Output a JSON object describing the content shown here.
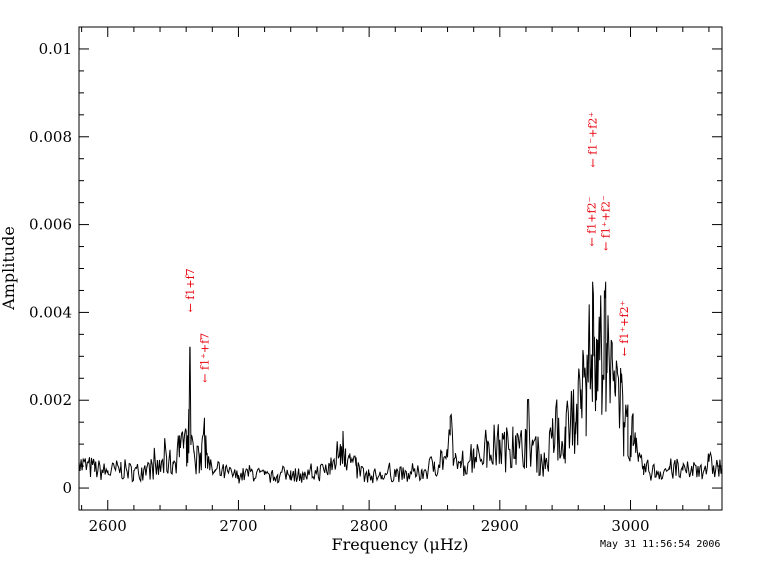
{
  "chart_data": {
    "type": "line",
    "title": "",
    "xlabel": "Frequency (μHz)",
    "ylabel": "Amplitude",
    "xlim": [
      2578,
      3070
    ],
    "ylim": [
      -0.0005,
      0.0105
    ],
    "xticks": [
      2600,
      2700,
      2800,
      2900,
      3000
    ],
    "xtick_labels": [
      "2600",
      "2700",
      "2800",
      "2900",
      "3000"
    ],
    "yticks": [
      0,
      0.002,
      0.004,
      0.006,
      0.008,
      0.01
    ],
    "ytick_labels": [
      "0",
      "0.002",
      "0.004",
      "0.006",
      "0.008",
      "0.01"
    ],
    "grid": false,
    "series": [
      {
        "color": "#000000",
        "x": [
          2578,
          2590,
          2600,
          2610,
          2620,
          2630,
          2640,
          2645,
          2650,
          2655,
          2658,
          2660,
          2661,
          2662,
          2663,
          2664,
          2666,
          2670,
          2672,
          2674,
          2675,
          2676,
          2678,
          2682,
          2690,
          2700,
          2710,
          2720,
          2730,
          2740,
          2750,
          2760,
          2770,
          2775,
          2778,
          2780,
          2782,
          2785,
          2790,
          2800,
          2810,
          2820,
          2830,
          2840,
          2850,
          2855,
          2860,
          2862,
          2863,
          2864,
          2866,
          2870,
          2880,
          2890,
          2900,
          2905,
          2910,
          2912,
          2915,
          2920,
          2925,
          2930,
          2935,
          2940,
          2945,
          2948,
          2950,
          2955,
          2958,
          2960,
          2962,
          2964,
          2966,
          2968,
          2970,
          2971,
          2972,
          2974,
          2975,
          2976,
          2978,
          2980,
          2981,
          2982,
          2984,
          2986,
          2988,
          2990,
          2992,
          2993,
          2995,
          2998,
          3000,
          3002,
          3004,
          3006,
          3010,
          3020,
          3030,
          3040,
          3050,
          3060,
          3070
        ],
        "y": [
          0.0006,
          0.0005,
          0.0004,
          0.0005,
          0.0004,
          0.0005,
          0.0005,
          0.0007,
          0.0006,
          0.0012,
          0.0009,
          0.0013,
          0.0012,
          0.0018,
          0.0032,
          0.0012,
          0.0008,
          0.0007,
          0.001,
          0.0016,
          0.0012,
          0.0008,
          0.0005,
          0.0004,
          0.0004,
          0.0003,
          0.0004,
          0.0003,
          0.0003,
          0.0004,
          0.0003,
          0.0004,
          0.0005,
          0.0008,
          0.001,
          0.0013,
          0.0009,
          0.0007,
          0.0005,
          0.0003,
          0.0003,
          0.0004,
          0.0003,
          0.0004,
          0.0006,
          0.0008,
          0.0007,
          0.0012,
          0.0016,
          0.001,
          0.0007,
          0.0006,
          0.0009,
          0.001,
          0.0011,
          0.001,
          0.0014,
          0.0012,
          0.0009,
          0.0013,
          0.0011,
          0.0008,
          0.0006,
          0.0012,
          0.0016,
          0.001,
          0.0014,
          0.0021,
          0.0015,
          0.0024,
          0.0018,
          0.003,
          0.0022,
          0.0035,
          0.0028,
          0.0047,
          0.003,
          0.0034,
          0.0022,
          0.0039,
          0.0028,
          0.0045,
          0.0047,
          0.0033,
          0.0026,
          0.0033,
          0.0022,
          0.0027,
          0.0018,
          0.0024,
          0.0015,
          0.0019,
          0.0012,
          0.0017,
          0.0008,
          0.0006,
          0.0005,
          0.0004,
          0.0005,
          0.0004,
          0.0005,
          0.0006,
          0.0005
        ]
      }
    ],
    "annotations": [
      {
        "text": "← f1+f7",
        "x": 2663,
        "y": 0.004
      },
      {
        "text": "← f1⁺+f7",
        "x": 2674,
        "y": 0.0024
      },
      {
        "text": "← f1+f2⁻",
        "x": 2970,
        "y": 0.0055
      },
      {
        "text": "← f1⁻+f2⁺",
        "x": 2971,
        "y": 0.0073
      },
      {
        "text": "← f1⁺+f2⁻",
        "x": 2981,
        "y": 0.0054
      },
      {
        "text": "← f1⁺+f2⁺",
        "x": 2995,
        "y": 0.003
      }
    ],
    "annotation_color": "#e8000b",
    "stamp": "May 31 11:56:54 2006"
  }
}
